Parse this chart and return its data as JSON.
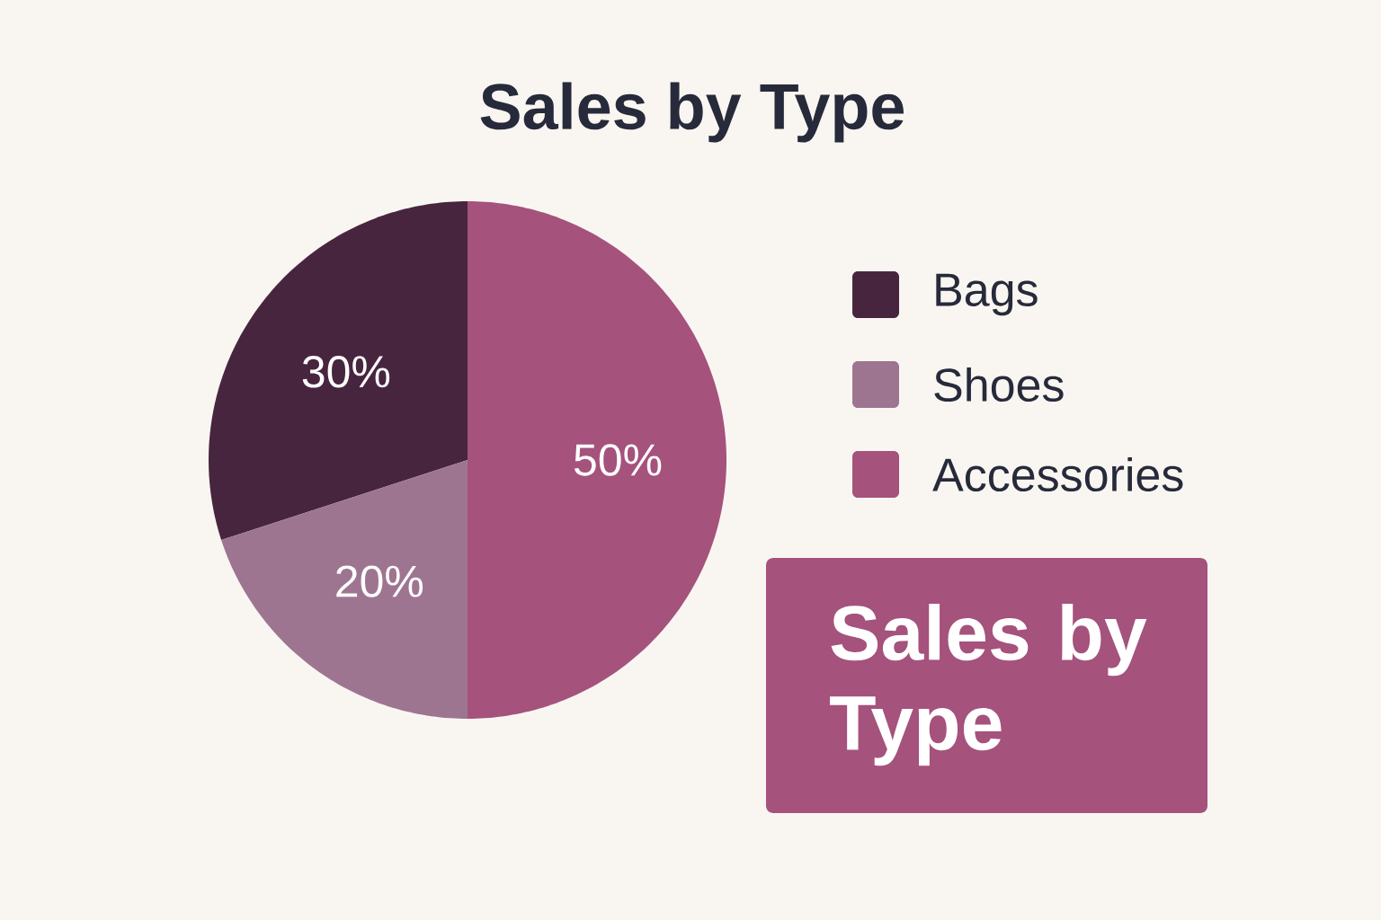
{
  "chart_data": {
    "type": "pie",
    "title": "Sales by Type",
    "categories": [
      "Bags",
      "Shoes",
      "Accessories"
    ],
    "values": [
      30,
      20,
      50
    ],
    "value_labels": [
      "30%",
      "20%",
      "50%"
    ],
    "colors": [
      "#48253f",
      "#9e7591",
      "#a5527c"
    ],
    "legend": "right",
    "annotations": [
      "Sales by Type"
    ]
  }
}
